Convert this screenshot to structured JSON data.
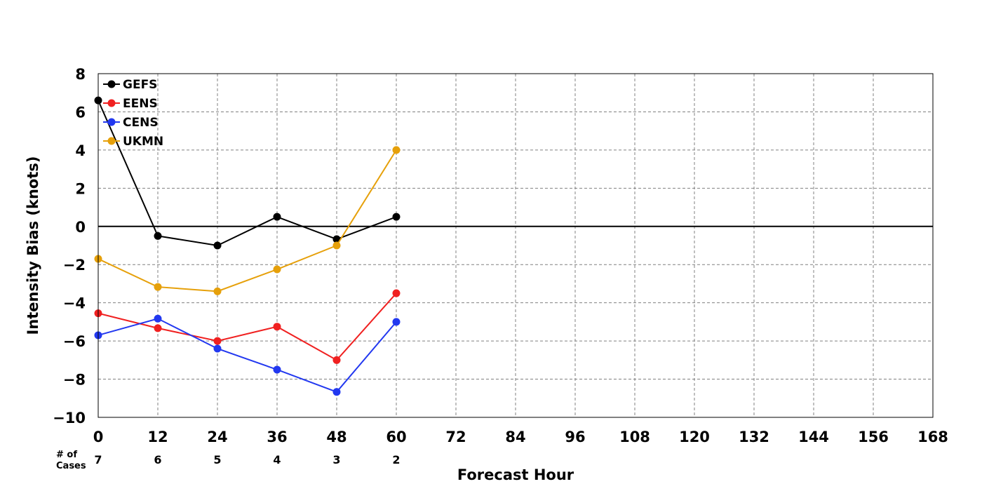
{
  "chart_data": {
    "type": "line",
    "xlabel": "Forecast Hour",
    "ylabel": "Intensity Bias (knots)",
    "xlim": [
      0,
      168
    ],
    "ylim": [
      -10,
      8
    ],
    "xticks": [
      0,
      12,
      24,
      36,
      48,
      60,
      72,
      84,
      96,
      108,
      120,
      132,
      144,
      156,
      168
    ],
    "yticks": [
      8,
      6,
      4,
      2,
      0,
      -2,
      -4,
      -6,
      -8,
      -10
    ],
    "grid": true,
    "legend_position": "top-left",
    "zero_line": true,
    "cases_label": [
      "# of",
      "Cases"
    ],
    "cases": [
      {
        "x": 0,
        "count": "7"
      },
      {
        "x": 12,
        "count": "6"
      },
      {
        "x": 24,
        "count": "5"
      },
      {
        "x": 36,
        "count": "4"
      },
      {
        "x": 48,
        "count": "3"
      },
      {
        "x": 60,
        "count": "2"
      }
    ],
    "x": [
      0,
      12,
      24,
      36,
      48,
      60
    ],
    "series": [
      {
        "name": "GEFS",
        "color": "#000000",
        "values": [
          6.6,
          -0.5,
          -1.0,
          0.5,
          -0.67,
          0.5
        ]
      },
      {
        "name": "EENS",
        "color": "#f02020",
        "values": [
          -4.55,
          -5.33,
          -6.0,
          -5.25,
          -7.0,
          -3.5
        ]
      },
      {
        "name": "CENS",
        "color": "#2238f0",
        "values": [
          -5.7,
          -4.83,
          -6.4,
          -7.5,
          -8.67,
          -5.0
        ]
      },
      {
        "name": "UKMN",
        "color": "#e6a00a",
        "values": [
          -1.7,
          -3.17,
          -3.4,
          -2.25,
          -1.0,
          4.0
        ]
      }
    ]
  }
}
